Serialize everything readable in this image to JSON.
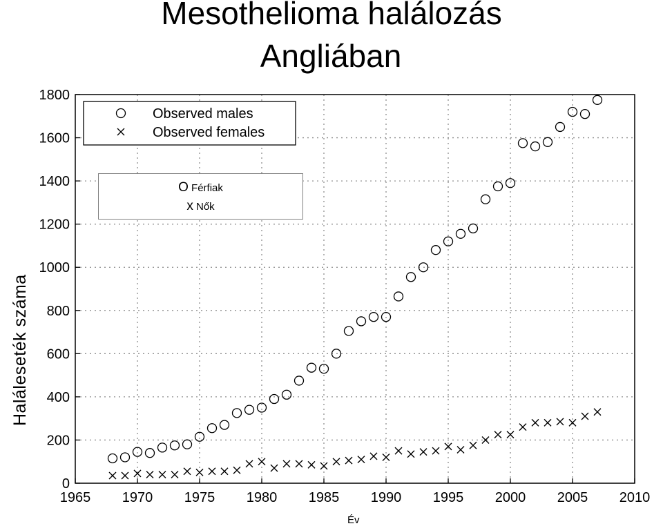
{
  "title_line1": "Mesothelioma halálozás",
  "title_line2": "Angliában",
  "y_axis_label": "Haláleseték száma",
  "x_axis_label": "Év",
  "overlay_legend": {
    "males_symbol": "O",
    "males_label": "Férfiak",
    "females_symbol": "x",
    "females_label": "Nők"
  },
  "chart_data": {
    "type": "scatter",
    "xlim": [
      1965,
      2010
    ],
    "ylim": [
      0,
      1800
    ],
    "x_ticks": [
      1965,
      1970,
      1975,
      1980,
      1985,
      1990,
      1995,
      2000,
      2005,
      2010
    ],
    "y_tick_labels": [
      "0",
      "200",
      "400",
      "600",
      "800",
      "1000",
      "1200",
      "1400",
      "1600",
      "1800"
    ],
    "grid": true,
    "legend_position": "top-left",
    "series": [
      {
        "name": "Observed males",
        "marker": "circle",
        "x": [
          1968,
          1969,
          1970,
          1971,
          1972,
          1973,
          1974,
          1975,
          1976,
          1977,
          1978,
          1979,
          1980,
          1981,
          1982,
          1983,
          1984,
          1985,
          1986,
          1987,
          1988,
          1989,
          1990,
          1991,
          1992,
          1993,
          1994,
          1995,
          1996,
          1997,
          1998,
          1999,
          2000,
          2001,
          2002,
          2003,
          2004,
          2005,
          2006,
          2007
        ],
        "y": [
          115,
          120,
          145,
          140,
          165,
          175,
          180,
          215,
          255,
          270,
          325,
          340,
          350,
          390,
          410,
          475,
          535,
          530,
          600,
          705,
          750,
          770,
          770,
          865,
          955,
          1000,
          1080,
          1120,
          1155,
          1180,
          1315,
          1375,
          1390,
          1575,
          1560,
          1580,
          1650,
          1720,
          1710,
          1775
        ]
      },
      {
        "name": "Observed females",
        "marker": "x",
        "x": [
          1968,
          1969,
          1970,
          1971,
          1972,
          1973,
          1974,
          1975,
          1976,
          1977,
          1978,
          1979,
          1980,
          1981,
          1982,
          1983,
          1984,
          1985,
          1986,
          1987,
          1988,
          1989,
          1990,
          1991,
          1992,
          1993,
          1994,
          1995,
          1996,
          1997,
          1998,
          1999,
          2000,
          2001,
          2002,
          2003,
          2004,
          2005,
          2006,
          2007
        ],
        "y": [
          35,
          35,
          45,
          40,
          40,
          40,
          55,
          50,
          55,
          55,
          60,
          90,
          100,
          70,
          90,
          90,
          85,
          80,
          100,
          105,
          110,
          125,
          120,
          150,
          135,
          145,
          150,
          170,
          155,
          175,
          200,
          225,
          225,
          260,
          280,
          280,
          285,
          280,
          310,
          330
        ]
      }
    ]
  },
  "colors": {
    "axis": "#000000",
    "grid": "#8c8c8c",
    "marker": "#000000"
  }
}
